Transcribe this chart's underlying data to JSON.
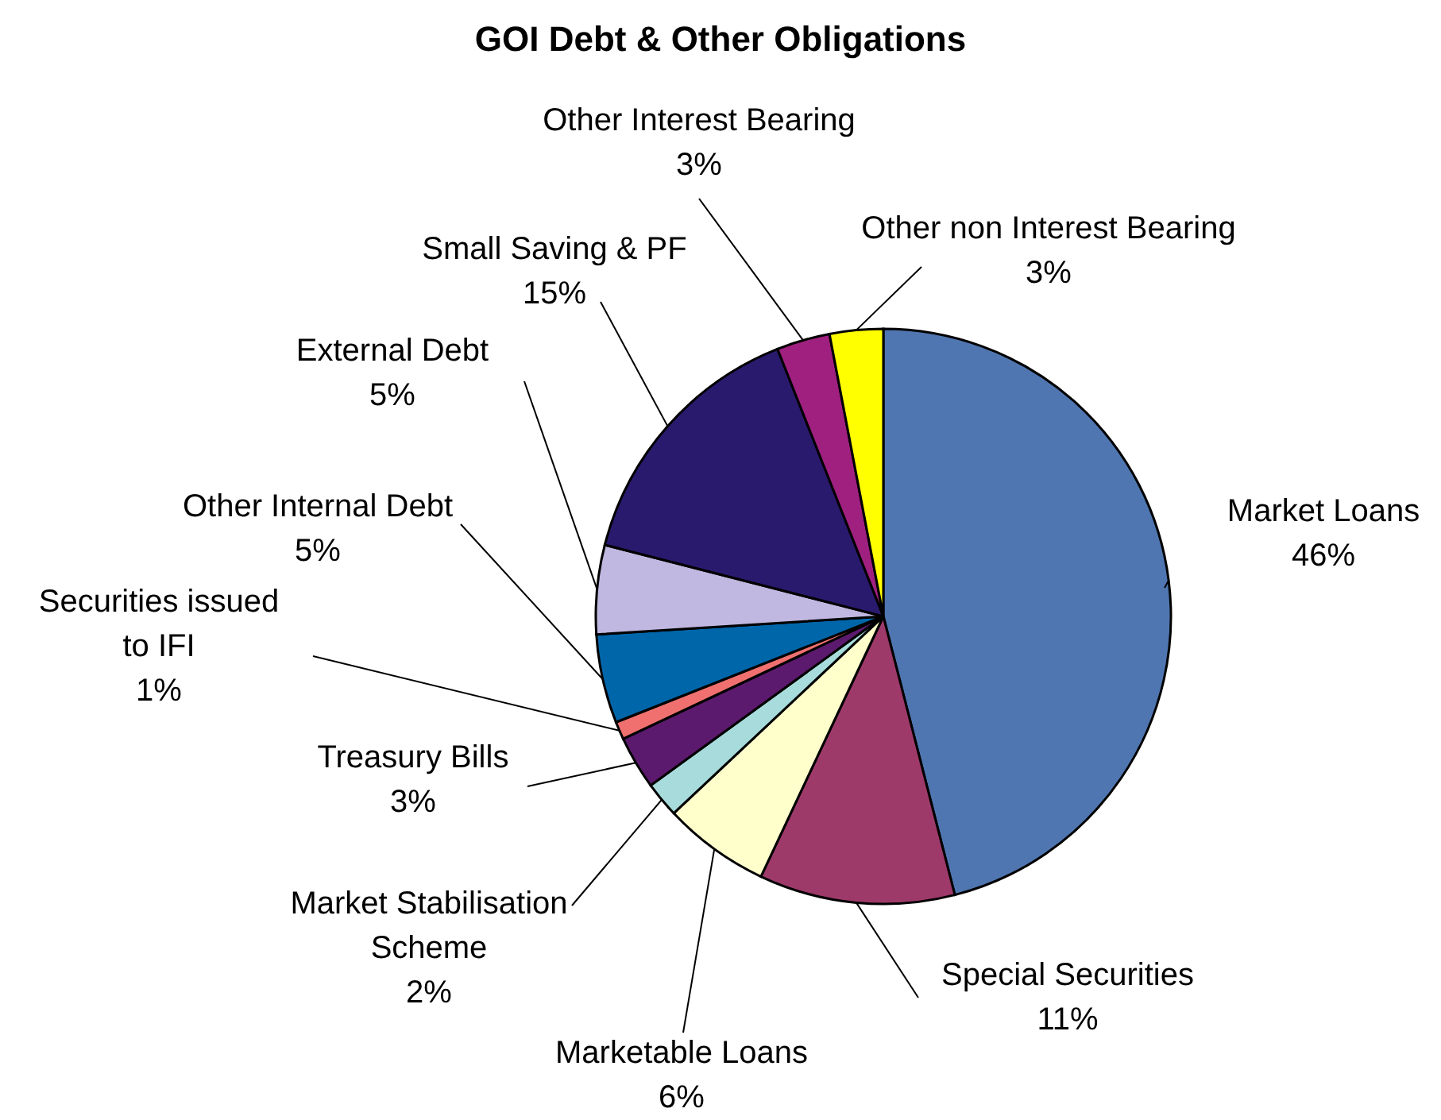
{
  "chart_data": {
    "type": "pie",
    "title": "GOI Debt & Other Obligations",
    "categories": [
      "Market Loans",
      "Special Securities",
      "Marketable Loans",
      "Market Stabilisation Scheme",
      "Treasury Bills",
      "Securities issued to IFI",
      "Other Internal Debt",
      "External Debt",
      "Small Saving & PF",
      "Other Interest Bearing",
      "Other non Interest Bearing"
    ],
    "values": [
      46,
      11,
      6,
      2,
      3,
      1,
      5,
      5,
      15,
      3,
      3
    ],
    "value_labels": [
      "46%",
      "11%",
      "6%",
      "2%",
      "3%",
      "1%",
      "5%",
      "5%",
      "15%",
      "3%",
      "3%"
    ],
    "colors": [
      "#4f76b0",
      "#9e3a6a",
      "#ffffcc",
      "#a8dcdc",
      "#5c1a6e",
      "#f07070",
      "#0066aa",
      "#c0b8e0",
      "#2a1a6e",
      "#a02080",
      "#ffff00"
    ]
  }
}
